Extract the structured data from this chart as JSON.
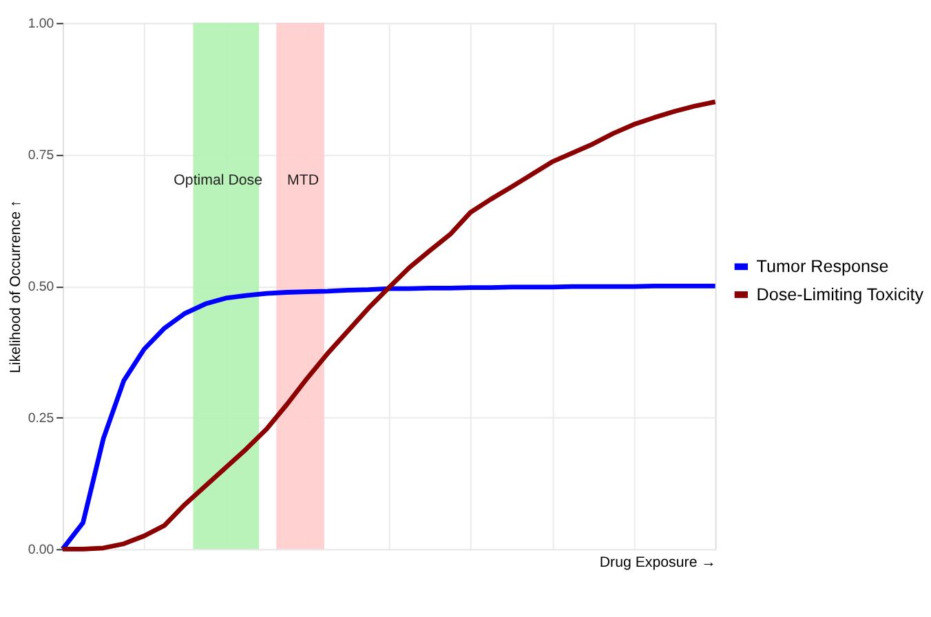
{
  "chart_data": {
    "type": "line",
    "xlabel": "Drug Exposure →",
    "ylabel": "Likelihood of Occurrence ↑",
    "categories": [
      null,
      null,
      null,
      null,
      null,
      null,
      null,
      null,
      null,
      null,
      null,
      null,
      null,
      null,
      null,
      null,
      null,
      null,
      null,
      null,
      null,
      null,
      null,
      null,
      null,
      null,
      null,
      null,
      null,
      null,
      null,
      null,
      null
    ],
    "ylim": [
      0,
      1
    ],
    "yticks": [
      {
        "value": 0,
        "label": "0.00"
      },
      {
        "value": 0.25,
        "label": "0.25"
      },
      {
        "value": 0.5,
        "label": "0.50"
      },
      {
        "value": 0.75,
        "label": "0.75"
      },
      {
        "value": 1,
        "label": "1.00"
      }
    ],
    "tick_labels": "y",
    "grid": true,
    "legend": "right",
    "line_style": "solid",
    "series": [
      {
        "name": "Tumor Response",
        "color": "#0000ff",
        "values": [
          0,
          0.05,
          0.21,
          0.32,
          0.38,
          0.42,
          0.448,
          0.466,
          0.477,
          0.482,
          0.486,
          0.488,
          0.489,
          0.49,
          0.492,
          0.493,
          0.495,
          0.495,
          0.496,
          0.496,
          0.497,
          0.497,
          0.498,
          0.498,
          0.498,
          0.499,
          0.499,
          0.499,
          0.499,
          0.5,
          0.5,
          0.5,
          0.5
        ]
      },
      {
        "name": "Dose-Limiting Toxicity",
        "color": "#8b0000",
        "values": [
          0,
          0,
          0.002,
          0.01,
          0.025,
          0.045,
          0.085,
          0.12,
          0.155,
          0.19,
          0.228,
          0.275,
          0.325,
          0.372,
          0.415,
          0.458,
          0.497,
          0.535,
          0.567,
          0.598,
          0.64,
          0.665,
          0.688,
          0.712,
          0.736,
          0.753,
          0.77,
          0.79,
          0.807,
          0.82,
          0.832,
          0.842,
          0.85
        ]
      }
    ],
    "annotations": [
      "Optimal Dose",
      "MTD"
    ]
  }
}
